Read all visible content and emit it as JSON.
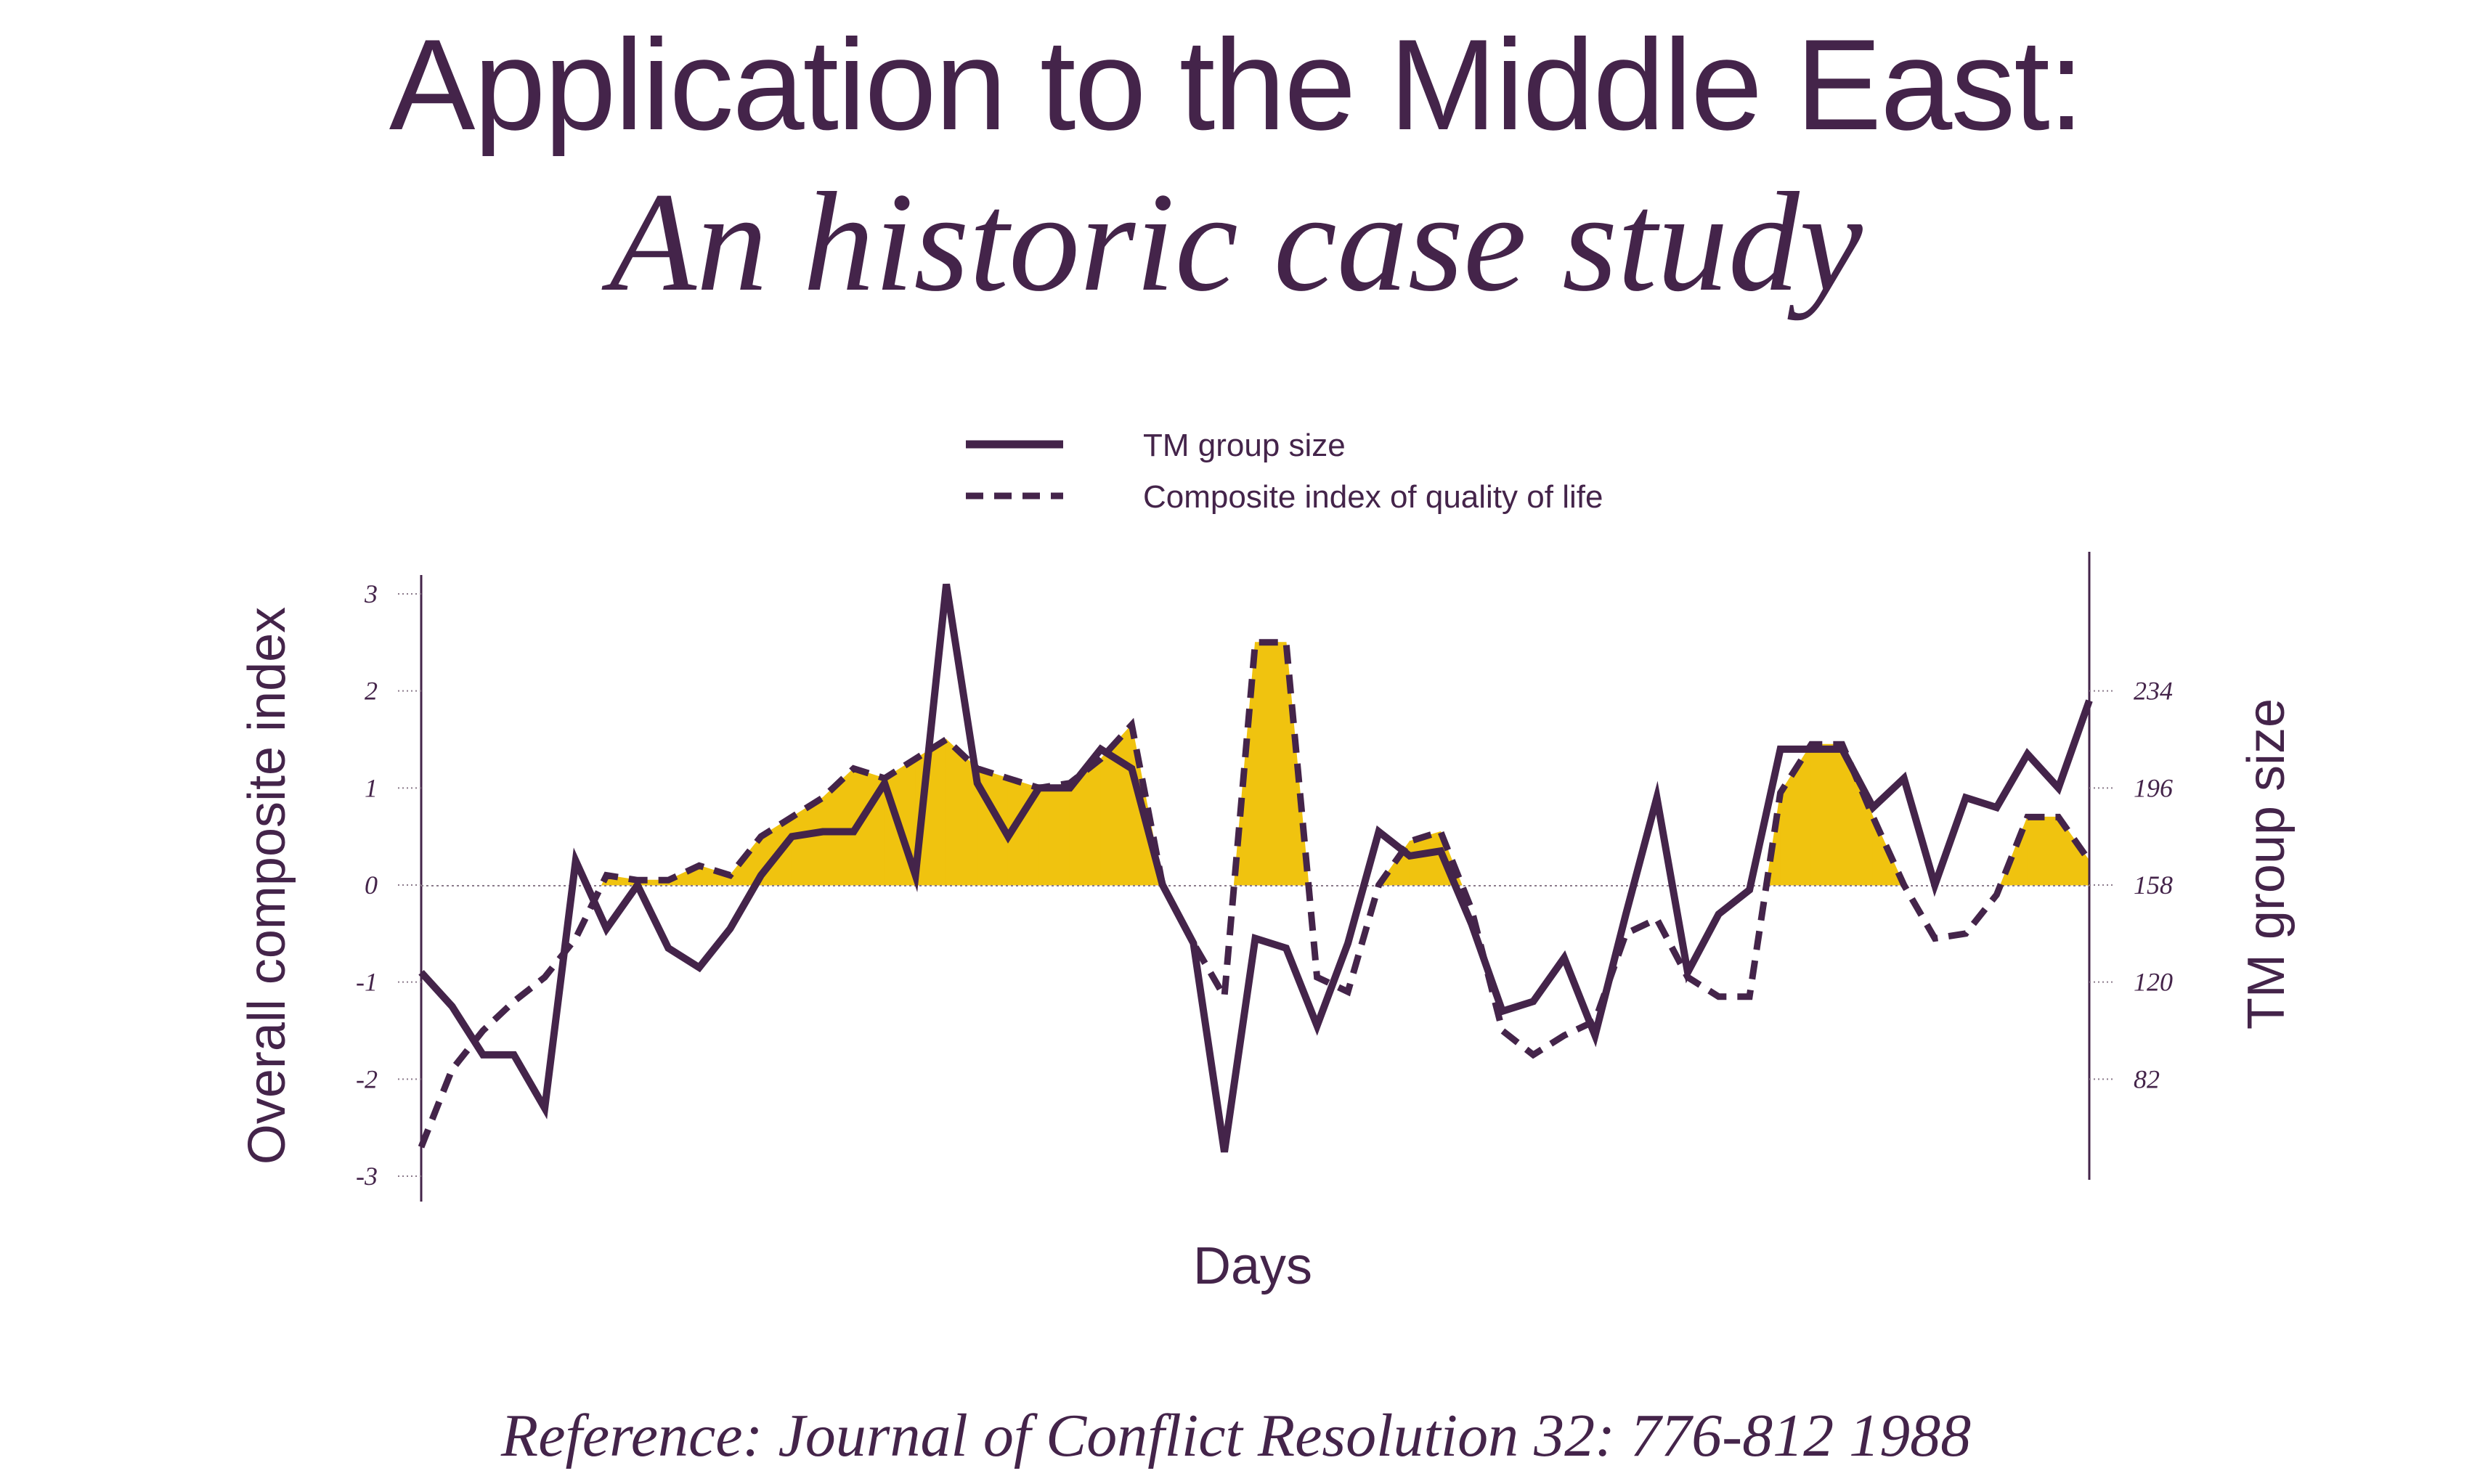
{
  "title": "Application to the Middle East:",
  "subtitle": "An historic case study",
  "reference": "Reference: Journal of Conflict Resolution 32: 776-812 1988",
  "colors": {
    "text": "#44244a",
    "line": "#44244a",
    "fill": "#f0c30f"
  },
  "chart_data": {
    "type": "line",
    "xlabel": "Days",
    "ylabel_left": "Overall composite index",
    "ylabel_right": "TM group size",
    "ylim_left": [
      -3,
      3
    ],
    "yticks_left": [
      "3",
      "2",
      "1",
      "0",
      "-1",
      "-2",
      "-3"
    ],
    "yticks_right": [
      "234",
      "196",
      "158",
      "120",
      "82"
    ],
    "grid": "dotted tick leaders",
    "legend_position": "top-center",
    "shading": "area between the composite index and 0 is shaded when the index is above 0",
    "series": [
      {
        "name": "TM group size",
        "style": "solid",
        "axis": "right",
        "values": [
          -0.9,
          -1.25,
          -1.75,
          -1.75,
          -2.3,
          0.25,
          -0.45,
          0.0,
          -0.65,
          -0.85,
          -0.45,
          0.1,
          0.5,
          0.55,
          0.55,
          1.05,
          0.1,
          3.1,
          1.05,
          0.5,
          1.0,
          1.0,
          1.4,
          1.2,
          0.0,
          -0.6,
          -2.75,
          -0.55,
          -0.65,
          -1.45,
          -0.6,
          0.55,
          0.3,
          0.35,
          -0.4,
          -1.3,
          -1.2,
          -0.75,
          -1.55,
          -0.3,
          0.9,
          -0.9,
          -0.3,
          -0.05,
          1.4,
          1.4,
          1.4,
          0.8,
          1.1,
          0.0,
          0.9,
          0.8,
          1.35,
          1.0,
          1.9
        ]
      },
      {
        "name": "Composite index of quality of life",
        "style": "dashed",
        "axis": "left",
        "values": [
          -2.7,
          -1.9,
          -1.5,
          -1.2,
          -0.95,
          -0.55,
          0.1,
          0.05,
          0.05,
          0.2,
          0.1,
          0.5,
          0.7,
          0.9,
          1.2,
          1.1,
          1.3,
          1.5,
          1.2,
          1.1,
          1.0,
          1.05,
          1.3,
          1.65,
          0.0,
          -0.6,
          -1.15,
          2.5,
          2.5,
          -0.95,
          -1.1,
          0.0,
          0.45,
          0.55,
          -0.25,
          -1.5,
          -1.75,
          -1.55,
          -1.4,
          -0.5,
          -0.35,
          -0.95,
          -1.15,
          -1.15,
          0.95,
          1.45,
          1.45,
          0.7,
          0.0,
          -0.55,
          -0.5,
          -0.1,
          0.7,
          0.7,
          0.25
        ]
      }
    ]
  }
}
